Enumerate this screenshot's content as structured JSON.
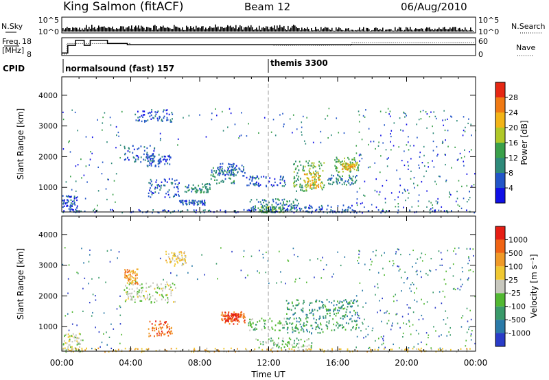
{
  "header": {
    "station": "King Salmon (fitACF)",
    "beam": "Beam 12",
    "date": "06/Aug/2010"
  },
  "summary": {
    "nsky_label": "N.Sky",
    "nsearch_label": "N.Search",
    "nsky_ticks": [
      "10^5",
      "10^0"
    ],
    "freq_label_1": "Freq.",
    "freq_label_2": "[MHz]",
    "freq_ticks": [
      "18",
      "8"
    ],
    "nave_label": "Nave",
    "nave_ticks": [
      "60",
      "0"
    ],
    "cpid_label": "CPID",
    "cpid_1": "normalsound (fast) 157",
    "cpid_2": "themis 3300",
    "freq_steps": [
      [
        0.0,
        8.0
      ],
      [
        0.35,
        14.0
      ],
      [
        0.8,
        18.0
      ],
      [
        1.3,
        14.0
      ],
      [
        1.65,
        18.0
      ],
      [
        2.65,
        15.5
      ],
      [
        3.8,
        14.5
      ],
      [
        24.0,
        14.5
      ]
    ],
    "nave_steps": [
      [
        0.0,
        5
      ],
      [
        0.3,
        42
      ],
      [
        4.0,
        38
      ],
      [
        10.2,
        38
      ],
      [
        12.3,
        36
      ],
      [
        16.8,
        44
      ],
      [
        24.0,
        44
      ]
    ]
  },
  "x_axis": {
    "label": "Time UT",
    "ticks": [
      "00:00",
      "04:00",
      "08:00",
      "12:00",
      "16:00",
      "20:00",
      "00:00"
    ]
  },
  "power_colorbar": {
    "label": "Power [dB]",
    "ticks": [
      "4",
      "8",
      "12",
      "16",
      "20",
      "24",
      "28"
    ],
    "colors": [
      "#1010e6",
      "#2255c8",
      "#2e8a7a",
      "#3aa04a",
      "#b0c828",
      "#f2b418",
      "#f07a14",
      "#e62814"
    ]
  },
  "velocity_colorbar": {
    "label": "Velocity [m s⁻¹]",
    "ticks": [
      "1000",
      "500",
      "100",
      "25",
      "-25",
      "-100",
      "-500",
      "-1000"
    ],
    "colors": [
      "#2a3cc8",
      "#2a7aa8",
      "#3a9a6a",
      "#52b832",
      "#c8c8be",
      "#f0c832",
      "#f09a28",
      "#f06414",
      "#e61e14"
    ]
  },
  "chart_data": [
    {
      "type": "heatmap",
      "panel": "power",
      "ylabel": "Slant Range [km]",
      "yticks": [
        "1000",
        "2000",
        "3000",
        "4000"
      ],
      "ylim": [
        200,
        4600
      ],
      "xlim_hours": [
        0,
        24
      ],
      "scatter_regions": [
        {
          "t": [
            3.6,
            5.4
          ],
          "r": [
            1850,
            2400
          ],
          "level": 1
        },
        {
          "t": [
            4.9,
            6.3
          ],
          "r": [
            1700,
            2100
          ],
          "level": 1
        },
        {
          "t": [
            4.2,
            6.4
          ],
          "r": [
            3150,
            3550
          ],
          "level": 1
        },
        {
          "t": [
            5.0,
            6.8
          ],
          "r": [
            700,
            1300
          ],
          "level": 1
        },
        {
          "t": [
            6.8,
            8.3
          ],
          "r": [
            450,
            600
          ],
          "level": 1
        },
        {
          "t": [
            7.0,
            8.6
          ],
          "r": [
            850,
            1150
          ],
          "level": 2
        },
        {
          "t": [
            8.6,
            10.0
          ],
          "r": [
            1150,
            1700
          ],
          "level": 2
        },
        {
          "t": [
            9.0,
            10.6
          ],
          "r": [
            1400,
            1800
          ],
          "level": 1
        },
        {
          "t": [
            10.6,
            13.0
          ],
          "r": [
            1050,
            1400
          ],
          "level": 1
        },
        {
          "t": [
            10.8,
            13.8
          ],
          "r": [
            200,
            650
          ],
          "level": 2
        },
        {
          "t": [
            11.5,
            12.8
          ],
          "r": [
            200,
            400
          ],
          "level": 3
        },
        {
          "t": [
            12.8,
            17.0
          ],
          "r": [
            200,
            450
          ],
          "level": 1
        },
        {
          "t": [
            13.4,
            15.2
          ],
          "r": [
            900,
            1900
          ],
          "level": 3
        },
        {
          "t": [
            14.0,
            15.0
          ],
          "r": [
            1000,
            1500
          ],
          "level": 5
        },
        {
          "t": [
            15.4,
            17.1
          ],
          "r": [
            1100,
            1450
          ],
          "level": 2
        },
        {
          "t": [
            15.8,
            17.3
          ],
          "r": [
            1500,
            2000
          ],
          "level": 3
        },
        {
          "t": [
            16.2,
            17.0
          ],
          "r": [
            1600,
            1800
          ],
          "level": 5
        },
        {
          "t": [
            0.0,
            0.9
          ],
          "r": [
            200,
            750
          ],
          "level": 1
        },
        {
          "t": [
            0.0,
            24.0
          ],
          "r": [
            200,
            300
          ],
          "level": 1
        }
      ]
    },
    {
      "type": "heatmap",
      "panel": "velocity",
      "ylabel": "Slant Range [km]",
      "yticks": [
        "1000",
        "2000",
        "3000",
        "4000"
      ],
      "ylim": [
        200,
        4600
      ],
      "xlim_hours": [
        0,
        24
      ],
      "scatter_regions": [
        {
          "t": [
            3.6,
            6.6
          ],
          "r": [
            1800,
            2500
          ],
          "level": 4
        },
        {
          "t": [
            3.6,
            4.4
          ],
          "r": [
            2400,
            2900
          ],
          "level": 6
        },
        {
          "t": [
            5.0,
            6.4
          ],
          "r": [
            700,
            1200
          ],
          "level": 7
        },
        {
          "t": [
            6.0,
            7.2
          ],
          "r": [
            3000,
            3500
          ],
          "level": 5
        },
        {
          "t": [
            9.2,
            10.6
          ],
          "r": [
            1100,
            1500
          ],
          "level": 7
        },
        {
          "t": [
            9.4,
            10.2
          ],
          "r": [
            1200,
            1450
          ],
          "level": 8
        },
        {
          "t": [
            10.8,
            13.2
          ],
          "r": [
            900,
            1300
          ],
          "level": 3
        },
        {
          "t": [
            11.2,
            14.5
          ],
          "r": [
            300,
            650
          ],
          "level": 3
        },
        {
          "t": [
            13.0,
            15.4
          ],
          "r": [
            800,
            1900
          ],
          "level": 2
        },
        {
          "t": [
            15.4,
            17.2
          ],
          "r": [
            900,
            1900
          ],
          "level": 2
        },
        {
          "t": [
            0.0,
            1.2
          ],
          "r": [
            200,
            800
          ],
          "level": 4
        },
        {
          "t": [
            0.0,
            24.0
          ],
          "r": [
            200,
            320
          ],
          "level": 5
        }
      ]
    }
  ]
}
